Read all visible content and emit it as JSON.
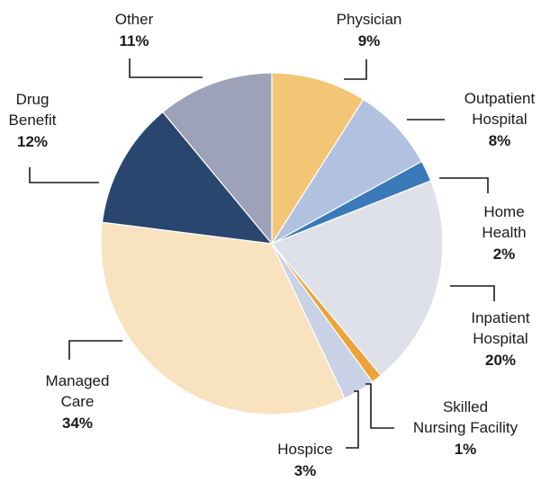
{
  "chart_data": {
    "type": "pie",
    "slices": [
      {
        "key": "physician",
        "lines": [
          "Physician"
        ],
        "pct_label": "9%",
        "value": 9,
        "color": "#F3C676"
      },
      {
        "key": "outpatient",
        "lines": [
          "Outpatient",
          "Hospital"
        ],
        "pct_label": "8%",
        "value": 8,
        "color": "#B1C2E0"
      },
      {
        "key": "home-health",
        "lines": [
          "Home",
          "Health"
        ],
        "pct_label": "2%",
        "value": 2,
        "color": "#3A7AB8"
      },
      {
        "key": "inpatient",
        "lines": [
          "Inpatient",
          "Hospital"
        ],
        "pct_label": "20%",
        "value": 20,
        "color": "#DEE1EA"
      },
      {
        "key": "skilled-nursing",
        "lines": [
          "Skilled",
          "Nursing Facility"
        ],
        "pct_label": "1%",
        "value": 1,
        "color": "#EDA33A"
      },
      {
        "key": "hospice",
        "lines": [
          "Hospice"
        ],
        "pct_label": "3%",
        "value": 3,
        "color": "#C8D1E6"
      },
      {
        "key": "managed-care",
        "lines": [
          "Managed",
          "Care"
        ],
        "pct_label": "34%",
        "value": 34,
        "color": "#F8E2BF"
      },
      {
        "key": "drug-benefit",
        "lines": [
          "Drug",
          "Benefit"
        ],
        "pct_label": "12%",
        "value": 12,
        "color": "#28466E"
      },
      {
        "key": "other",
        "lines": [
          "Other"
        ],
        "pct_label": "11%",
        "value": 11,
        "color": "#9EA2B8"
      }
    ]
  }
}
